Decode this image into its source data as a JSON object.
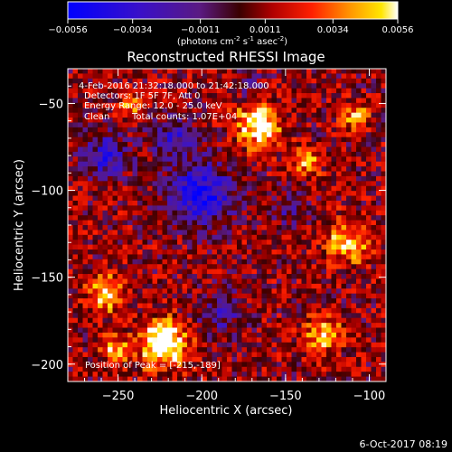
{
  "chart_data": {
    "type": "heatmap",
    "title": "Reconstructed RHESSI Image",
    "xlabel": "Heliocentric X (arcsec)",
    "ylabel": "Heliocentric Y (arcsec)",
    "xlim": [
      -280,
      -90
    ],
    "ylim": [
      -210,
      -30
    ],
    "x_ticks": [
      -250,
      -200,
      -150,
      -100
    ],
    "x_tick_labels": [
      "−250",
      "−200",
      "−150",
      "−100"
    ],
    "y_ticks": [
      -50,
      -100,
      -150,
      -200
    ],
    "y_tick_labels": [
      "−50",
      "−100",
      "−150",
      "−200"
    ],
    "colorbar": {
      "range": [
        -0.0056,
        0.0056
      ],
      "ticks": [
        -0.0056,
        -0.0034,
        -0.0011,
        0.0011,
        0.0034,
        0.0056
      ],
      "tick_labels": [
        "−0.0056",
        "−0.0034",
        "−0.0011",
        "0.0011",
        "0.0034",
        "0.0056"
      ],
      "units_prefix": "(photons cm",
      "units_exp1": "-2",
      "units_mid": " s",
      "units_exp2": "-1",
      "units_mid2": " asec",
      "units_exp3": "-2",
      "units_suffix": ")"
    },
    "annotations": {
      "time_range": "4-Feb-2016 21:32:18.000 to 21:42:18.000",
      "detectors": "Detectors: 1F 5F 7F, Att 0",
      "energy_range": "Energy Range: 12.0 - 25.0 keV",
      "clean_label": "Clean",
      "total_counts": "Total counts: 1.07E+04",
      "peak_position": "Position of Peak = [-215,-189]"
    },
    "peak": {
      "x": -215,
      "y": -189
    },
    "total_counts": 10700,
    "footer_date": "6-Oct-2017 08:19"
  }
}
